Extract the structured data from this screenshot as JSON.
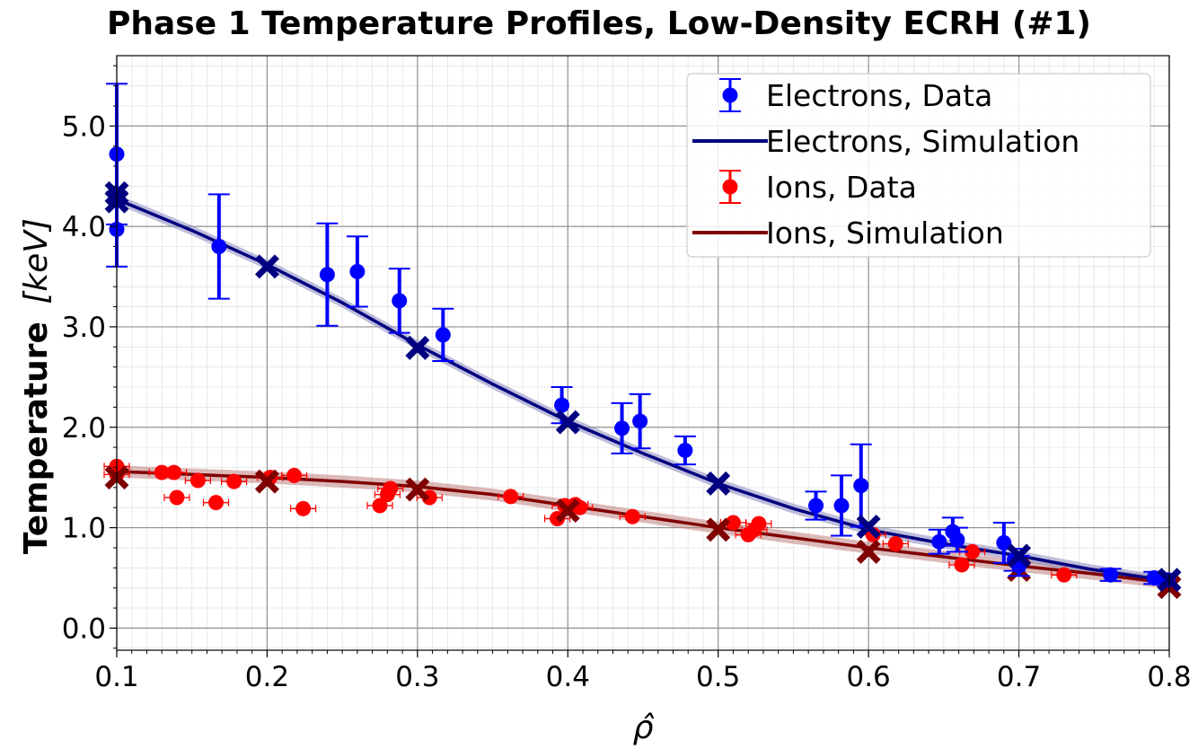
{
  "chart_data": {
    "type": "scatter",
    "title": "Phase 1 Temperature Profiles, Low-Density ECRH (#1)",
    "xlabel": "ρ̂",
    "ylabel_main": "Temperature",
    "ylabel_units": "[keV]",
    "xlim": [
      0.1,
      0.8
    ],
    "ylim": [
      -0.22,
      5.7
    ],
    "xticks": [
      0.1,
      0.2,
      0.3,
      0.4,
      0.5,
      0.6,
      0.7,
      0.8
    ],
    "xtick_labels": [
      "0.1",
      "0.2",
      "0.3",
      "0.4",
      "0.5",
      "0.6",
      "0.7",
      "0.8"
    ],
    "yticks": [
      0.0,
      1.0,
      2.0,
      3.0,
      4.0,
      5.0
    ],
    "ytick_labels": [
      "0.0",
      "1.0",
      "2.0",
      "3.0",
      "4.0",
      "5.0"
    ],
    "grid": true,
    "legend_position": "top-right",
    "legend": [
      "Electrons, Data",
      "Electrons, Simulation",
      "Ions, Data",
      "Ions, Simulation"
    ],
    "colors": {
      "electron_data": "#0000ff",
      "electron_sim": "#000080",
      "electron_band": "#8888c0",
      "ion_data": "#ff0000",
      "ion_sim": "#800000",
      "ion_band": "#c08080"
    },
    "series": [
      {
        "name": "Electrons, Data",
        "kind": "errorbar",
        "points": [
          {
            "x": 0.1,
            "y": 4.72,
            "err": 0.7
          },
          {
            "x": 0.1,
            "y": 3.97,
            "err": 0.37
          },
          {
            "x": 0.168,
            "y": 3.8,
            "err": 0.52
          },
          {
            "x": 0.24,
            "y": 3.52,
            "err": 0.51
          },
          {
            "x": 0.26,
            "y": 3.55,
            "err": 0.35
          },
          {
            "x": 0.288,
            "y": 3.26,
            "err": 0.32
          },
          {
            "x": 0.317,
            "y": 2.92,
            "err": 0.26
          },
          {
            "x": 0.396,
            "y": 2.22,
            "err": 0.18
          },
          {
            "x": 0.436,
            "y": 1.99,
            "err": 0.25
          },
          {
            "x": 0.448,
            "y": 2.06,
            "err": 0.27
          },
          {
            "x": 0.478,
            "y": 1.77,
            "err": 0.14
          },
          {
            "x": 0.565,
            "y": 1.22,
            "err": 0.14
          },
          {
            "x": 0.582,
            "y": 1.22,
            "err": 0.3
          },
          {
            "x": 0.595,
            "y": 1.42,
            "err": 0.41
          },
          {
            "x": 0.647,
            "y": 0.86,
            "err": 0.12
          },
          {
            "x": 0.656,
            "y": 0.96,
            "err": 0.14
          },
          {
            "x": 0.659,
            "y": 0.88,
            "err": 0.12
          },
          {
            "x": 0.69,
            "y": 0.85,
            "err": 0.2
          },
          {
            "x": 0.697,
            "y": 0.68,
            "err": 0.11
          },
          {
            "x": 0.7,
            "y": 0.62,
            "err": 0.1
          },
          {
            "x": 0.761,
            "y": 0.53,
            "err": 0.06
          },
          {
            "x": 0.79,
            "y": 0.5,
            "err": 0.06
          },
          {
            "x": 0.799,
            "y": 0.48,
            "err": 0.06
          }
        ]
      },
      {
        "name": "Electrons, Simulation",
        "kind": "line",
        "x": [
          0.1,
          0.15,
          0.2,
          0.25,
          0.3,
          0.35,
          0.4,
          0.45,
          0.5,
          0.55,
          0.6,
          0.65,
          0.7,
          0.75,
          0.8
        ],
        "y": [
          4.27,
          3.96,
          3.62,
          3.24,
          2.82,
          2.43,
          2.06,
          1.74,
          1.44,
          1.19,
          0.98,
          0.84,
          0.72,
          0.58,
          0.47
        ],
        "band": 0.05,
        "markers": [
          {
            "x": 0.1,
            "y": 4.25
          },
          {
            "x": 0.1,
            "y": 4.33
          },
          {
            "x": 0.2,
            "y": 3.6
          },
          {
            "x": 0.3,
            "y": 2.79
          },
          {
            "x": 0.4,
            "y": 2.05
          },
          {
            "x": 0.5,
            "y": 1.44
          },
          {
            "x": 0.6,
            "y": 1.01
          },
          {
            "x": 0.7,
            "y": 0.72
          },
          {
            "x": 0.8,
            "y": 0.48
          }
        ]
      },
      {
        "name": "Ions, Data",
        "kind": "errorbar",
        "points": [
          {
            "x": 0.1,
            "y": 1.61,
            "err": 0.03
          },
          {
            "x": 0.1,
            "y": 1.53,
            "err": 0.03
          },
          {
            "x": 0.13,
            "y": 1.55,
            "err": 0.03
          },
          {
            "x": 0.138,
            "y": 1.55,
            "err": 0.03
          },
          {
            "x": 0.14,
            "y": 1.3,
            "err": 0.03
          },
          {
            "x": 0.154,
            "y": 1.47,
            "err": 0.03
          },
          {
            "x": 0.166,
            "y": 1.25,
            "err": 0.03
          },
          {
            "x": 0.178,
            "y": 1.46,
            "err": 0.03
          },
          {
            "x": 0.202,
            "y": 1.5,
            "err": 0.03
          },
          {
            "x": 0.218,
            "y": 1.52,
            "err": 0.03
          },
          {
            "x": 0.224,
            "y": 1.19,
            "err": 0.03
          },
          {
            "x": 0.275,
            "y": 1.22,
            "err": 0.03
          },
          {
            "x": 0.28,
            "y": 1.33,
            "err": 0.03
          },
          {
            "x": 0.282,
            "y": 1.39,
            "err": 0.03
          },
          {
            "x": 0.308,
            "y": 1.3,
            "err": 0.03
          },
          {
            "x": 0.362,
            "y": 1.31,
            "err": 0.03
          },
          {
            "x": 0.393,
            "y": 1.09,
            "err": 0.03
          },
          {
            "x": 0.398,
            "y": 1.22,
            "err": 0.03
          },
          {
            "x": 0.405,
            "y": 1.23,
            "err": 0.03
          },
          {
            "x": 0.408,
            "y": 1.2,
            "err": 0.03
          },
          {
            "x": 0.443,
            "y": 1.11,
            "err": 0.03
          },
          {
            "x": 0.51,
            "y": 1.05,
            "err": 0.03
          },
          {
            "x": 0.52,
            "y": 0.93,
            "err": 0.03
          },
          {
            "x": 0.524,
            "y": 0.98,
            "err": 0.03
          },
          {
            "x": 0.527,
            "y": 1.04,
            "err": 0.03
          },
          {
            "x": 0.603,
            "y": 0.93,
            "err": 0.03
          },
          {
            "x": 0.618,
            "y": 0.84,
            "err": 0.03
          },
          {
            "x": 0.662,
            "y": 0.63,
            "err": 0.03
          },
          {
            "x": 0.669,
            "y": 0.76,
            "err": 0.03
          },
          {
            "x": 0.73,
            "y": 0.53,
            "err": 0.03
          }
        ]
      },
      {
        "name": "Ions, Simulation",
        "kind": "line",
        "x": [
          0.1,
          0.15,
          0.2,
          0.25,
          0.3,
          0.35,
          0.4,
          0.45,
          0.5,
          0.55,
          0.6,
          0.65,
          0.7,
          0.75,
          0.8
        ],
        "y": [
          1.56,
          1.53,
          1.5,
          1.46,
          1.41,
          1.33,
          1.22,
          1.11,
          1.0,
          0.9,
          0.8,
          0.71,
          0.62,
          0.54,
          0.45
        ],
        "band": 0.06,
        "markers": [
          {
            "x": 0.1,
            "y": 1.5
          },
          {
            "x": 0.2,
            "y": 1.46
          },
          {
            "x": 0.3,
            "y": 1.38
          },
          {
            "x": 0.4,
            "y": 1.17
          },
          {
            "x": 0.5,
            "y": 0.98
          },
          {
            "x": 0.6,
            "y": 0.76
          },
          {
            "x": 0.7,
            "y": 0.58
          },
          {
            "x": 0.8,
            "y": 0.41
          }
        ]
      }
    ]
  }
}
